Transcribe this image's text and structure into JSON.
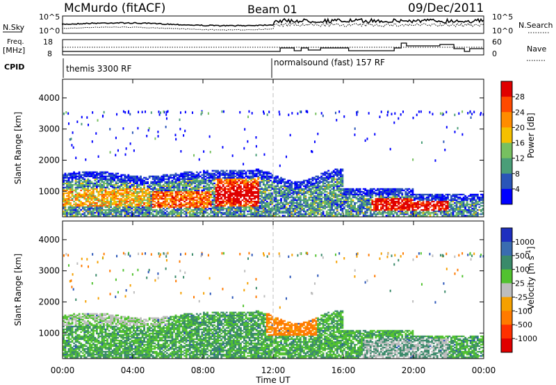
{
  "header": {
    "station": "McMurdo (fitACF)",
    "beam": "Beam 01",
    "date": "09/Dec/2011"
  },
  "top_panels": {
    "nsky_label": "N.Sky",
    "nsearch_label": "N.Search",
    "freq_label": "Freq.",
    "freq_unit": "[MHz]",
    "nave_label": "Nave",
    "cpid_label": "CPID",
    "nsky_ticks": [
      "10^5",
      "10^0"
    ],
    "nsearch_ticks": [
      "10^5",
      "10^0"
    ],
    "freq_ticks": [
      "18",
      "8"
    ],
    "nave_ticks": [
      "60",
      "0"
    ],
    "cpid_segments": [
      {
        "start_hour": 0,
        "end_hour": 12,
        "label": "themis 3300 RF"
      },
      {
        "start_hour": 12,
        "end_hour": 24,
        "label": "normalsound (fast) 157 RF"
      }
    ]
  },
  "chart_data": [
    {
      "type": "heatmap",
      "title": "",
      "xlabel": "Time UT",
      "ylabel": "Slant Range [km]",
      "x_ticks": [
        "00:00",
        "04:00",
        "08:00",
        "12:00",
        "16:00",
        "20:00",
        "00:00"
      ],
      "xlim_hours": [
        0,
        24
      ],
      "y_ticks": [
        1000,
        2000,
        3000,
        4000
      ],
      "ylim": [
        180,
        4600
      ],
      "colorbar": {
        "label": "Power [dB]",
        "ticks": [
          "4",
          "8",
          "12",
          "16",
          "20",
          "24",
          "28"
        ],
        "colors": [
          "#0000ff",
          "#2a55b8",
          "#4a9e78",
          "#77c060",
          "#f5c000",
          "#ff8c00",
          "#ff4a00",
          "#e00000"
        ]
      }
    },
    {
      "type": "heatmap",
      "title": "",
      "xlabel": "Time UT",
      "ylabel": "Slant Range [km]",
      "x_ticks": [
        "00:00",
        "04:00",
        "08:00",
        "12:00",
        "16:00",
        "20:00",
        "00:00"
      ],
      "xlim_hours": [
        0,
        24
      ],
      "y_ticks": [
        1000,
        2000,
        3000,
        4000
      ],
      "ylim": [
        180,
        4600
      ],
      "colorbar": {
        "label": "Velocity [m s^-1]",
        "ticks": [
          "1000",
          "500",
          "100",
          "25",
          "-25",
          "-100",
          "-500",
          "-1000"
        ],
        "colors": [
          "#1e2fbf",
          "#3a6cb0",
          "#3a8a6a",
          "#52c230",
          "#bdbdbd",
          "#f5a000",
          "#ff7a00",
          "#ff3000",
          "#e00000"
        ]
      }
    }
  ],
  "time_axis_label": "Time UT"
}
